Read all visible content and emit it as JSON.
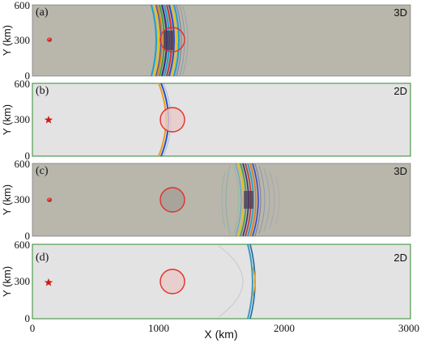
{
  "figure": {
    "x_axis": {
      "label": "X (km)",
      "ticks": [
        "0",
        "1000",
        "2000",
        "3000"
      ]
    },
    "y_axis": {
      "label": "Y (km)",
      "ticks": [
        "0",
        "300",
        "600"
      ]
    },
    "panels": [
      {
        "tag": "(a)",
        "dim": "3D",
        "source_marker": "dot"
      },
      {
        "tag": "(b)",
        "dim": "2D",
        "source_marker": "star"
      },
      {
        "tag": "(c)",
        "dim": "3D",
        "source_marker": "dot"
      },
      {
        "tag": "(d)",
        "dim": "2D",
        "source_marker": "star"
      }
    ],
    "colors": {
      "panel_3d_bg": "#b9b6ac",
      "panel_2d_bg": "#e3e3e3",
      "panel_2d_border": "#2f8a2f",
      "circle": "#e0302a",
      "marker": "#c81e1e"
    }
  }
}
